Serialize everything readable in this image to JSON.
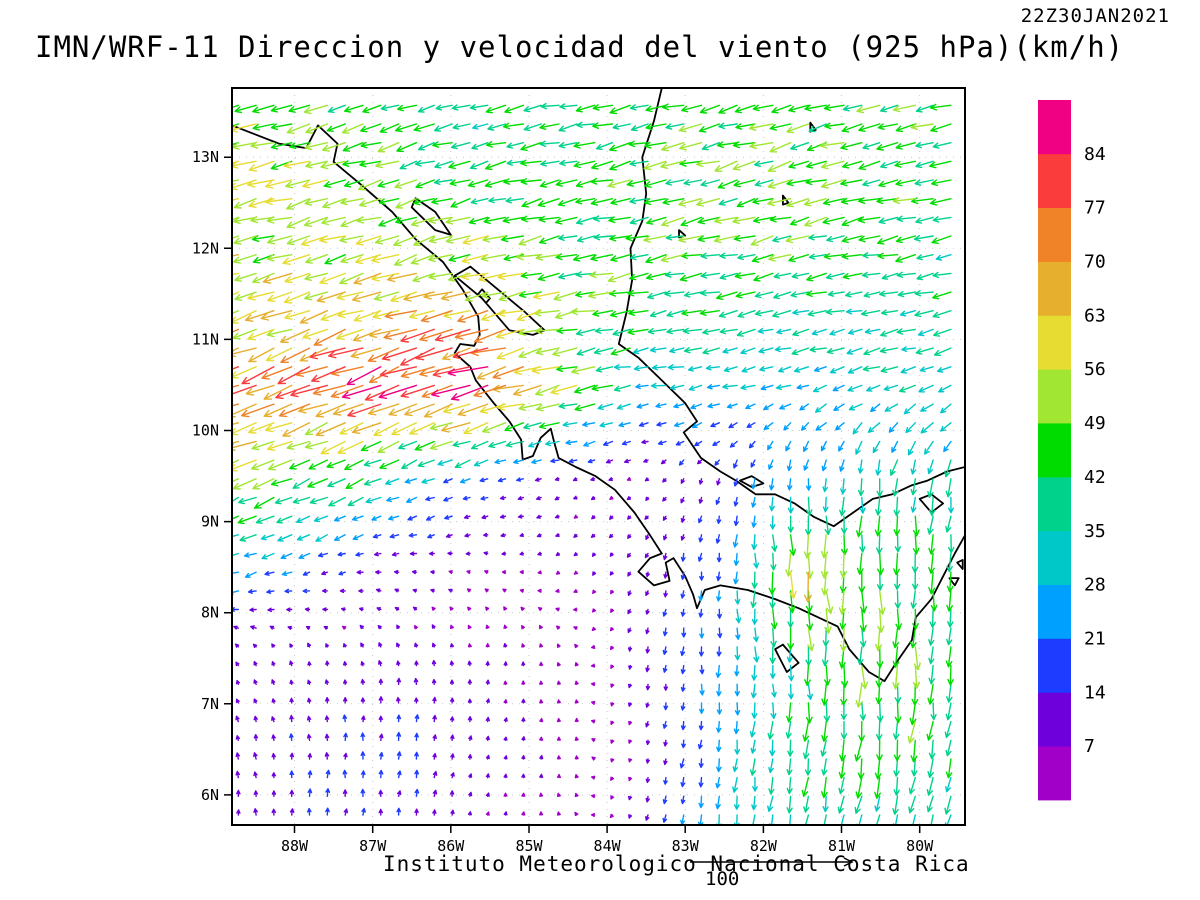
{
  "chart_data": {
    "type": "vector_field",
    "title": "IMN/WRF-11 Direccion y velocidad del viento (925 hPa)(km/h)",
    "timestamp": "22Z30JAN2021",
    "caption": "Instituto Meteorologico Nacional Costa Rica",
    "units": "km/h",
    "level": "925 hPa",
    "reference_vector": {
      "magnitude": 100,
      "label": "100"
    },
    "x_axis": {
      "ticks": [
        "88W",
        "87W",
        "86W",
        "85W",
        "84W",
        "83W",
        "82W",
        "81W",
        "80W"
      ],
      "values": [
        -88,
        -87,
        -86,
        -85,
        -84,
        -83,
        -82,
        -81,
        -80
      ],
      "range": [
        -88.8,
        -79.42
      ]
    },
    "y_axis": {
      "ticks": [
        "6N",
        "7N",
        "8N",
        "9N",
        "10N",
        "11N",
        "12N",
        "13N"
      ],
      "values": [
        6,
        7,
        8,
        9,
        10,
        11,
        12,
        13
      ],
      "range": [
        5.67,
        13.76
      ]
    },
    "colorbar": {
      "levels": [
        7,
        14,
        21,
        28,
        35,
        42,
        49,
        56,
        63,
        70,
        77,
        84
      ],
      "colors": [
        "#A000C8",
        "#6E00DC",
        "#1E3CFF",
        "#00A0FF",
        "#00C8C8",
        "#00D28C",
        "#00DC00",
        "#A0E632",
        "#E6DC32",
        "#E6AF2D",
        "#F08228",
        "#FA3C3C",
        "#F00082"
      ]
    },
    "wind_grid": {
      "comment": "u=eastward, v=northward, km/h, coarse sampled field",
      "lats": [
        13.5,
        12.5,
        11.5,
        10.5,
        9.5,
        8.5,
        7.5,
        6.5,
        5.5
      ],
      "lons": [
        -88.5,
        -87.5,
        -86.5,
        -85.5,
        -84.5,
        -83.5,
        -82.5,
        -81.5,
        -80.5,
        -79.5
      ],
      "uv": [
        [
          [
            -50,
            -10
          ],
          [
            -45,
            -12
          ],
          [
            -40,
            -12
          ],
          [
            -38,
            -10
          ],
          [
            -40,
            -8
          ],
          [
            -42,
            -10
          ],
          [
            -45,
            -12
          ],
          [
            -46,
            -14
          ],
          [
            -44,
            -12
          ],
          [
            -45,
            -10
          ]
        ],
        [
          [
            -52,
            -14
          ],
          [
            -50,
            -15
          ],
          [
            -45,
            -14
          ],
          [
            -42,
            -12
          ],
          [
            -42,
            -10
          ],
          [
            -44,
            -10
          ],
          [
            -45,
            -12
          ],
          [
            -45,
            -12
          ],
          [
            -43,
            -10
          ],
          [
            -42,
            -10
          ]
        ],
        [
          [
            -55,
            -18
          ],
          [
            -58,
            -18
          ],
          [
            -60,
            -18
          ],
          [
            -58,
            -15
          ],
          [
            -48,
            -10
          ],
          [
            -44,
            -8
          ],
          [
            -42,
            -8
          ],
          [
            -40,
            -8
          ],
          [
            -38,
            -6
          ],
          [
            -36,
            -6
          ]
        ],
        [
          [
            -68,
            -26
          ],
          [
            -72,
            -28
          ],
          [
            -75,
            -28
          ],
          [
            -80,
            -25
          ],
          [
            -55,
            -12
          ],
          [
            -30,
            -5
          ],
          [
            -28,
            -6
          ],
          [
            -28,
            -8
          ],
          [
            -30,
            -10
          ],
          [
            -32,
            -12
          ]
        ],
        [
          [
            -48,
            -22
          ],
          [
            -40,
            -18
          ],
          [
            -28,
            -12
          ],
          [
            -16,
            -6
          ],
          [
            -8,
            -3
          ],
          [
            -6,
            -4
          ],
          [
            -4,
            -14
          ],
          [
            -2,
            -26
          ],
          [
            -4,
            -38
          ],
          [
            -6,
            -36
          ]
        ],
        [
          [
            -24,
            -8
          ],
          [
            -14,
            -4
          ],
          [
            -9,
            0
          ],
          [
            -6,
            2
          ],
          [
            -5,
            -4
          ],
          [
            -4,
            -10
          ],
          [
            -2,
            -22
          ],
          [
            4,
            -60
          ],
          [
            2,
            -45
          ],
          [
            -2,
            -40
          ]
        ],
        [
          [
            -4,
            8
          ],
          [
            -2,
            9
          ],
          [
            -2,
            10
          ],
          [
            0,
            8
          ],
          [
            -2,
            6
          ],
          [
            -2,
            -12
          ],
          [
            0,
            -24
          ],
          [
            2,
            -38
          ],
          [
            0,
            -48
          ],
          [
            -2,
            -42
          ]
        ],
        [
          [
            -2,
            12
          ],
          [
            0,
            14
          ],
          [
            2,
            16
          ],
          [
            2,
            8
          ],
          [
            0,
            6
          ],
          [
            -2,
            -10
          ],
          [
            -2,
            -26
          ],
          [
            -4,
            -40
          ],
          [
            -6,
            -44
          ],
          [
            -8,
            -38
          ]
        ],
        [
          [
            0,
            12
          ],
          [
            2,
            16
          ],
          [
            2,
            12
          ],
          [
            1,
            6
          ],
          [
            -2,
            5
          ],
          [
            -4,
            -10
          ],
          [
            -6,
            -28
          ],
          [
            -10,
            -38
          ],
          [
            -10,
            -30
          ],
          [
            -10,
            -32
          ]
        ]
      ]
    },
    "map": {
      "coastlines": [
        [
          [
            -88.8,
            13.35
          ],
          [
            -88.2,
            13.15
          ],
          [
            -87.85,
            13.1
          ],
          [
            -87.7,
            13.35
          ],
          [
            -87.45,
            13.15
          ],
          [
            -87.5,
            12.95
          ],
          [
            -87.15,
            12.7
          ],
          [
            -86.75,
            12.4
          ],
          [
            -86.45,
            12.1
          ],
          [
            -86.1,
            11.85
          ],
          [
            -85.85,
            11.55
          ],
          [
            -85.65,
            11.25
          ],
          [
            -85.63,
            11.05
          ],
          [
            -85.7,
            10.93
          ],
          [
            -85.88,
            10.95
          ],
          [
            -85.95,
            10.85
          ],
          [
            -85.75,
            10.7
          ],
          [
            -85.68,
            10.55
          ],
          [
            -85.45,
            10.3
          ],
          [
            -85.25,
            10.1
          ],
          [
            -85.1,
            9.9
          ],
          [
            -85.08,
            9.68
          ],
          [
            -84.95,
            9.72
          ],
          [
            -84.85,
            9.92
          ],
          [
            -84.72,
            10.02
          ],
          [
            -84.68,
            9.88
          ],
          [
            -84.62,
            9.7
          ],
          [
            -84.4,
            9.6
          ],
          [
            -84.15,
            9.5
          ],
          [
            -83.9,
            9.35
          ],
          [
            -83.65,
            9.1
          ],
          [
            -83.45,
            8.85
          ],
          [
            -83.3,
            8.65
          ],
          [
            -83.45,
            8.6
          ],
          [
            -83.6,
            8.45
          ],
          [
            -83.4,
            8.3
          ],
          [
            -83.2,
            8.35
          ],
          [
            -83.25,
            8.55
          ],
          [
            -83.15,
            8.6
          ],
          [
            -83.0,
            8.4
          ],
          [
            -82.9,
            8.2
          ],
          [
            -82.85,
            8.05
          ],
          [
            -82.75,
            8.25
          ],
          [
            -82.55,
            8.3
          ],
          [
            -82.2,
            8.25
          ],
          [
            -81.85,
            8.15
          ],
          [
            -81.55,
            8.05
          ],
          [
            -81.3,
            7.95
          ],
          [
            -81.05,
            7.85
          ],
          [
            -80.9,
            7.6
          ],
          [
            -80.65,
            7.35
          ],
          [
            -80.45,
            7.25
          ],
          [
            -80.3,
            7.45
          ],
          [
            -80.1,
            7.7
          ],
          [
            -80.05,
            7.95
          ],
          [
            -79.85,
            8.15
          ],
          [
            -79.7,
            8.4
          ],
          [
            -79.55,
            8.65
          ],
          [
            -79.42,
            8.85
          ]
        ],
        [
          [
            -83.3,
            13.76
          ],
          [
            -83.4,
            13.4
          ],
          [
            -83.55,
            13.0
          ],
          [
            -83.5,
            12.6
          ],
          [
            -83.55,
            12.3
          ],
          [
            -83.7,
            12.0
          ],
          [
            -83.68,
            11.65
          ],
          [
            -83.75,
            11.3
          ],
          [
            -83.85,
            10.95
          ],
          [
            -83.6,
            10.8
          ],
          [
            -83.3,
            10.55
          ],
          [
            -83.0,
            10.3
          ],
          [
            -82.85,
            10.1
          ],
          [
            -83.02,
            9.98
          ],
          [
            -82.8,
            9.7
          ],
          [
            -82.55,
            9.55
          ],
          [
            -82.35,
            9.45
          ],
          [
            -82.1,
            9.3
          ],
          [
            -81.85,
            9.3
          ],
          [
            -81.6,
            9.2
          ],
          [
            -81.35,
            9.05
          ],
          [
            -81.1,
            8.95
          ],
          [
            -80.85,
            9.1
          ],
          [
            -80.6,
            9.25
          ],
          [
            -80.35,
            9.3
          ],
          [
            -80.1,
            9.4
          ],
          [
            -79.9,
            9.45
          ],
          [
            -79.65,
            9.55
          ],
          [
            -79.42,
            9.6
          ]
        ]
      ],
      "lakes": [
        [
          [
            -85.95,
            11.7
          ],
          [
            -85.6,
            11.45
          ],
          [
            -85.25,
            11.1
          ],
          [
            -84.95,
            11.05
          ],
          [
            -84.8,
            11.1
          ],
          [
            -85.05,
            11.3
          ],
          [
            -85.4,
            11.55
          ],
          [
            -85.75,
            11.8
          ]
        ],
        [
          [
            -86.5,
            12.45
          ],
          [
            -86.2,
            12.2
          ],
          [
            -86.0,
            12.15
          ],
          [
            -86.2,
            12.4
          ],
          [
            -86.45,
            12.55
          ]
        ],
        [
          [
            -80.0,
            9.25
          ],
          [
            -79.85,
            9.1
          ],
          [
            -79.7,
            9.2
          ],
          [
            -79.85,
            9.3
          ]
        ]
      ],
      "islands": [
        [
          [
            -85.6,
            11.55
          ],
          [
            -85.5,
            11.45
          ],
          [
            -85.55,
            11.4
          ],
          [
            -85.65,
            11.5
          ]
        ],
        [
          [
            -81.85,
            7.6
          ],
          [
            -81.7,
            7.35
          ],
          [
            -81.55,
            7.45
          ],
          [
            -81.75,
            7.65
          ]
        ],
        [
          [
            -82.3,
            9.45
          ],
          [
            -82.15,
            9.5
          ],
          [
            -82.0,
            9.42
          ],
          [
            -82.15,
            9.38
          ]
        ],
        [
          [
            -81.4,
            13.38
          ],
          [
            -81.33,
            13.3
          ],
          [
            -81.4,
            13.28
          ]
        ],
        [
          [
            -81.75,
            12.58
          ],
          [
            -81.68,
            12.5
          ],
          [
            -81.75,
            12.48
          ]
        ],
        [
          [
            -83.08,
            12.2
          ],
          [
            -83.0,
            12.14
          ],
          [
            -83.08,
            12.12
          ]
        ],
        [
          [
            -79.62,
            8.38
          ],
          [
            -79.55,
            8.3
          ],
          [
            -79.5,
            8.38
          ]
        ],
        [
          [
            -79.52,
            8.55
          ],
          [
            -79.45,
            8.48
          ],
          [
            -79.45,
            8.58
          ]
        ]
      ]
    }
  }
}
